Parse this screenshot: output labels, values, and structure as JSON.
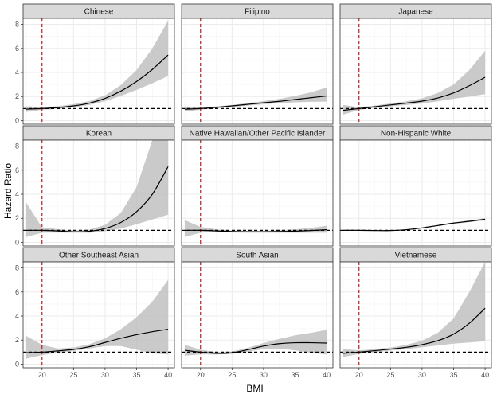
{
  "chart_data": {
    "type": "line",
    "layout": "facet-grid-3x3",
    "xlabel": "BMI",
    "ylabel": "Hazard Ratio",
    "xlim": [
      17,
      41
    ],
    "ylim": [
      -0.3,
      8.5
    ],
    "x_ticks": [
      20,
      25,
      30,
      35,
      40
    ],
    "y_ticks": [
      0,
      2,
      4,
      6,
      8
    ],
    "reference_hline": 1,
    "reference_vline": 20,
    "colors": {
      "curve": "#000000",
      "band": "#bdbdbd",
      "hline": "#000000",
      "vline": "#b22222",
      "strip": "#d9d9d9",
      "grid_major": "#ebebeb",
      "grid_minor": "#f5f5f5",
      "panel_border": "#333333"
    },
    "panels": [
      {
        "title": "Chinese",
        "x": [
          17.5,
          20,
          22.5,
          25,
          27.5,
          30,
          32.5,
          35,
          37.5,
          40
        ],
        "y": [
          0.95,
          1.0,
          1.08,
          1.22,
          1.45,
          1.85,
          2.45,
          3.25,
          4.25,
          5.45
        ],
        "lower": [
          0.72,
          0.9,
          0.98,
          1.1,
          1.3,
          1.62,
          2.05,
          2.55,
          3.1,
          3.7
        ],
        "upper": [
          1.2,
          1.1,
          1.2,
          1.36,
          1.62,
          2.1,
          2.95,
          4.2,
          6.0,
          8.3
        ],
        "show_vline": true
      },
      {
        "title": "Filipino",
        "x": [
          17.5,
          20,
          22.5,
          25,
          27.5,
          30,
          32.5,
          35,
          37.5,
          40
        ],
        "y": [
          0.95,
          1.0,
          1.1,
          1.22,
          1.35,
          1.48,
          1.6,
          1.75,
          1.9,
          2.05
        ],
        "lower": [
          0.75,
          0.9,
          1.02,
          1.13,
          1.25,
          1.35,
          1.45,
          1.52,
          1.56,
          1.58
        ],
        "upper": [
          1.18,
          1.1,
          1.18,
          1.3,
          1.45,
          1.62,
          1.8,
          2.05,
          2.35,
          2.75
        ],
        "show_vline": true
      },
      {
        "title": "Japanese",
        "x": [
          17.5,
          20,
          22.5,
          25,
          27.5,
          30,
          32.5,
          35,
          37.5,
          40
        ],
        "y": [
          0.85,
          1.0,
          1.15,
          1.3,
          1.45,
          1.62,
          1.88,
          2.3,
          2.9,
          3.6
        ],
        "lower": [
          0.5,
          0.88,
          1.05,
          1.18,
          1.3,
          1.42,
          1.6,
          1.82,
          2.0,
          2.2
        ],
        "upper": [
          1.3,
          1.12,
          1.25,
          1.42,
          1.6,
          1.85,
          2.3,
          3.0,
          4.2,
          5.8
        ],
        "show_vline": true
      },
      {
        "title": "Korean",
        "x": [
          17.5,
          20,
          22.5,
          25,
          27.5,
          30,
          32.5,
          35,
          37.5,
          40
        ],
        "y": [
          1.0,
          1.0,
          0.95,
          0.88,
          0.92,
          1.15,
          1.65,
          2.55,
          4.0,
          6.3
        ],
        "lower": [
          0.45,
          0.8,
          0.82,
          0.8,
          0.8,
          0.92,
          1.15,
          1.5,
          1.9,
          2.3
        ],
        "upper": [
          3.3,
          1.25,
          1.1,
          0.98,
          1.05,
          1.45,
          2.45,
          4.6,
          8.5,
          8.5
        ],
        "show_vline": true
      },
      {
        "title": "Native Hawaiian/Other Pacific Islander",
        "x": [
          17.5,
          20,
          22.5,
          25,
          27.5,
          30,
          32.5,
          35,
          37.5,
          40
        ],
        "y": [
          1.0,
          1.0,
          0.95,
          0.9,
          0.88,
          0.88,
          0.9,
          0.93,
          0.98,
          1.05
        ],
        "lower": [
          0.45,
          0.8,
          0.85,
          0.82,
          0.8,
          0.8,
          0.8,
          0.8,
          0.8,
          0.8
        ],
        "upper": [
          1.85,
          1.28,
          1.08,
          0.98,
          0.96,
          0.96,
          1.0,
          1.08,
          1.2,
          1.38
        ],
        "show_vline": true
      },
      {
        "title": "Non-Hispanic White",
        "x": [
          17.5,
          20,
          22.5,
          25,
          27.5,
          30,
          32.5,
          35,
          37.5,
          40
        ],
        "y": [
          1.0,
          1.0,
          0.98,
          0.98,
          1.05,
          1.2,
          1.4,
          1.6,
          1.75,
          1.92
        ],
        "lower": [
          0.96,
          0.97,
          0.96,
          0.96,
          1.02,
          1.16,
          1.35,
          1.54,
          1.68,
          1.82
        ],
        "upper": [
          1.04,
          1.03,
          1.0,
          1.0,
          1.08,
          1.24,
          1.45,
          1.66,
          1.82,
          2.02
        ],
        "show_vline": false
      },
      {
        "title": "Other Southeast Asian",
        "x": [
          17.5,
          20,
          22.5,
          25,
          27.5,
          30,
          32.5,
          35,
          37.5,
          40
        ],
        "y": [
          0.95,
          1.0,
          1.1,
          1.22,
          1.45,
          1.8,
          2.15,
          2.45,
          2.7,
          2.9
        ],
        "lower": [
          0.45,
          0.75,
          0.95,
          1.1,
          1.3,
          1.5,
          1.5,
          1.2,
          0.9,
          0.8
        ],
        "upper": [
          2.35,
          1.6,
          1.3,
          1.38,
          1.65,
          2.15,
          2.9,
          3.9,
          5.2,
          7.0
        ],
        "show_vline": true
      },
      {
        "title": "South Asian",
        "x": [
          17.5,
          20,
          22.5,
          25,
          27.5,
          30,
          32.5,
          35,
          37.5,
          40
        ],
        "y": [
          1.15,
          1.0,
          0.9,
          0.95,
          1.2,
          1.5,
          1.7,
          1.78,
          1.78,
          1.75
        ],
        "lower": [
          0.7,
          0.82,
          0.8,
          0.85,
          1.05,
          1.25,
          1.3,
          1.15,
          0.95,
          0.8
        ],
        "upper": [
          1.6,
          1.2,
          1.0,
          1.05,
          1.35,
          1.75,
          2.1,
          2.4,
          2.6,
          2.85
        ],
        "show_vline": true
      },
      {
        "title": "Vietnamese",
        "x": [
          17.5,
          20,
          22.5,
          25,
          27.5,
          30,
          32.5,
          35,
          37.5,
          40
        ],
        "y": [
          0.9,
          1.0,
          1.12,
          1.25,
          1.4,
          1.62,
          1.95,
          2.5,
          3.4,
          4.65
        ],
        "lower": [
          0.6,
          0.85,
          1.0,
          1.12,
          1.25,
          1.4,
          1.55,
          1.7,
          1.8,
          1.9
        ],
        "upper": [
          1.25,
          1.15,
          1.25,
          1.38,
          1.6,
          1.95,
          2.6,
          3.8,
          6.0,
          8.5
        ],
        "show_vline": true
      }
    ]
  }
}
